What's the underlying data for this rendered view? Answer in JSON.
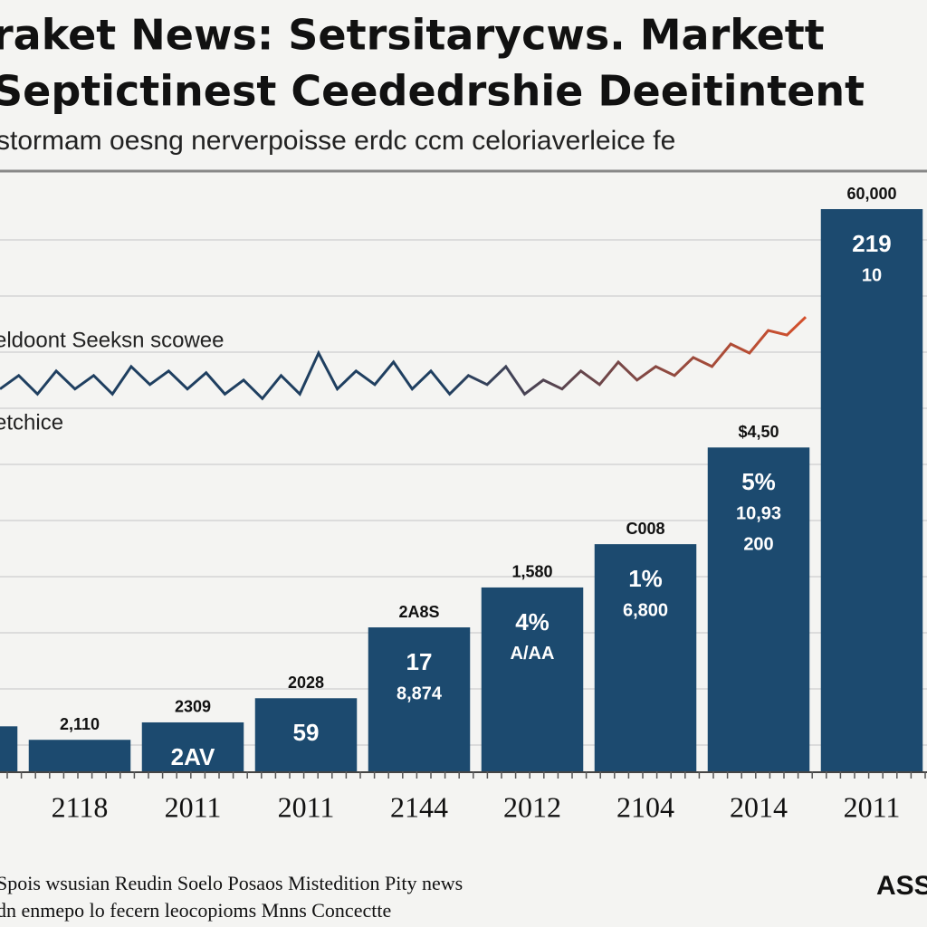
{
  "chart_data": {
    "type": "bar",
    "title": [
      "raket News: Setrsitarycws. Markett",
      "Septictinest Ceededrshie Deeitintent"
    ],
    "subtitle": "stormam oesng nerverpoisse erdc ccm celoriaverleice fe",
    "categories": [
      null,
      "2118",
      "2011",
      "2011",
      "2144",
      "2012",
      "2104",
      "2014",
      "2011"
    ],
    "values": [
      8,
      5.6,
      8.7,
      13,
      25.6,
      32.7,
      40.4,
      57.6,
      100
    ],
    "color": "#1c4a6f",
    "ylim": [
      0,
      100
    ],
    "top_labels": [
      null,
      "2,110",
      "2309",
      "2028",
      "2A8S",
      "1,580",
      "C008",
      "$4,50",
      "60,000"
    ],
    "inner_labels": [
      [],
      [],
      [
        "2AV"
      ],
      [
        "59"
      ],
      [
        "17",
        "8,874"
      ],
      [
        "4%",
        "A/AA"
      ],
      [
        "1%",
        "6,800"
      ],
      [
        "5%",
        "10,93",
        "200"
      ],
      [
        "219",
        "10"
      ]
    ],
    "line": {
      "name": "eldoont Seeksn scowee",
      "note": "etchice",
      "colors": [
        "#1f3f60",
        "#d4502c"
      ],
      "values": [
        68,
        70.4,
        67.1,
        71.2,
        68,
        70.4,
        67.1,
        72,
        68.8,
        71.2,
        68,
        70.9,
        67.1,
        69.6,
        66.3,
        70.4,
        67.1,
        74.4,
        68,
        71.2,
        68.8,
        72.8,
        68,
        71.2,
        67.1,
        70.4,
        68.8,
        72,
        67.1,
        69.6,
        68,
        71.2,
        68.8,
        72.8,
        69.6,
        72,
        70.4,
        73.6,
        72,
        76,
        74.4,
        78.4,
        77.6,
        80.8
      ]
    },
    "grid": true,
    "footer": [
      "Spois wsusian Reudin Soelo Posaos Mistedition Pity news",
      "dn enmepo lo fecern leocopioms Mnns Concectte"
    ],
    "logo": "ASS"
  }
}
